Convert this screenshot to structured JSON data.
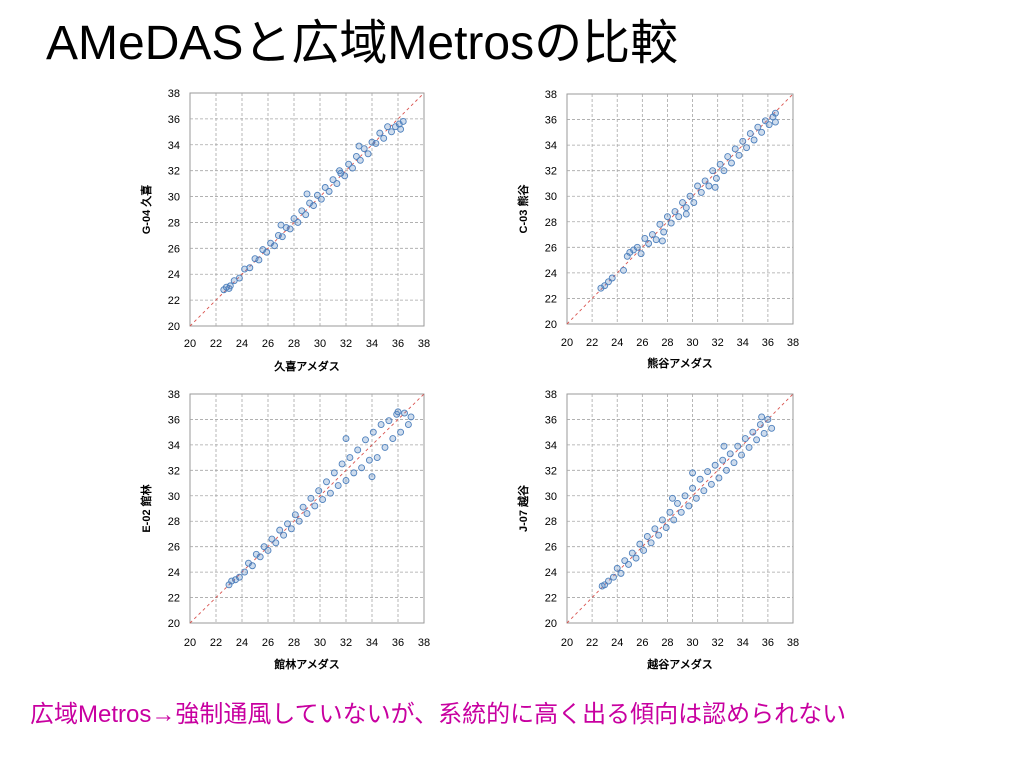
{
  "slide": {
    "title": "AMeDASと広域Metrosの比較",
    "note": "広域Metros→強制通風していないが、系統的に高く出る傾向は認められない",
    "colors": {
      "title": "#000000",
      "note": "#c800a0",
      "point": "#4f81bd",
      "point_fill": "rgba(79,129,189,0.28)",
      "diagonal": "#d9534f",
      "grid": "#a6a6a6",
      "frame": "#9a9a9a"
    }
  },
  "chart_data": [
    {
      "type": "scatter",
      "xlabel": "久喜アメダス",
      "ylabel": "G-04 久喜",
      "xlim": [
        20,
        38
      ],
      "ylim": [
        20,
        38
      ],
      "xticks": [
        "20",
        "22",
        "24",
        "26",
        "28",
        "30",
        "32",
        "34",
        "36",
        "38"
      ],
      "yticks": [
        "20",
        "22",
        "24",
        "26",
        "28",
        "30",
        "32",
        "34",
        "36",
        "38"
      ],
      "grid": true,
      "reference_line": {
        "x": [
          20,
          38
        ],
        "y": [
          20,
          38
        ]
      },
      "points": [
        [
          22.6,
          22.8
        ],
        [
          22.8,
          23.0
        ],
        [
          23.0,
          22.9
        ],
        [
          23.1,
          23.1
        ],
        [
          23.4,
          23.5
        ],
        [
          23.8,
          23.7
        ],
        [
          24.2,
          24.4
        ],
        [
          24.6,
          24.5
        ],
        [
          25.0,
          25.2
        ],
        [
          25.3,
          25.1
        ],
        [
          25.6,
          25.9
        ],
        [
          25.9,
          25.7
        ],
        [
          26.2,
          26.4
        ],
        [
          26.5,
          26.2
        ],
        [
          26.8,
          27.0
        ],
        [
          27.1,
          26.9
        ],
        [
          27.4,
          27.6
        ],
        [
          27.7,
          27.5
        ],
        [
          28.0,
          28.3
        ],
        [
          28.3,
          28.0
        ],
        [
          28.6,
          28.9
        ],
        [
          28.9,
          28.6
        ],
        [
          29.2,
          29.5
        ],
        [
          29.5,
          29.3
        ],
        [
          29.8,
          30.1
        ],
        [
          30.1,
          29.8
        ],
        [
          30.4,
          30.7
        ],
        [
          30.7,
          30.4
        ],
        [
          31.0,
          31.3
        ],
        [
          31.3,
          31.0
        ],
        [
          31.6,
          31.8
        ],
        [
          31.9,
          31.6
        ],
        [
          32.2,
          32.5
        ],
        [
          32.5,
          32.2
        ],
        [
          32.8,
          33.1
        ],
        [
          33.1,
          32.8
        ],
        [
          33.4,
          33.7
        ],
        [
          33.7,
          33.3
        ],
        [
          34.0,
          34.2
        ],
        [
          34.3,
          34.1
        ],
        [
          34.6,
          34.9
        ],
        [
          34.9,
          34.5
        ],
        [
          35.2,
          35.4
        ],
        [
          35.5,
          35.0
        ],
        [
          35.8,
          35.4
        ],
        [
          36.1,
          35.6
        ],
        [
          36.4,
          35.8
        ],
        [
          36.2,
          35.2
        ],
        [
          29.0,
          30.2
        ],
        [
          27.0,
          27.8
        ],
        [
          31.5,
          32.0
        ],
        [
          33.0,
          33.9
        ]
      ]
    },
    {
      "type": "scatter",
      "xlabel": "熊谷アメダス",
      "ylabel": "C-03 熊谷",
      "xlim": [
        20,
        38
      ],
      "ylim": [
        20,
        38
      ],
      "xticks": [
        "20",
        "22",
        "24",
        "26",
        "28",
        "30",
        "32",
        "34",
        "36",
        "38"
      ],
      "yticks": [
        "20",
        "22",
        "24",
        "26",
        "28",
        "30",
        "32",
        "34",
        "36",
        "38"
      ],
      "grid": true,
      "reference_line": {
        "x": [
          20,
          38
        ],
        "y": [
          20,
          38
        ]
      },
      "points": [
        [
          22.7,
          22.8
        ],
        [
          23.0,
          23.0
        ],
        [
          23.3,
          23.3
        ],
        [
          23.6,
          23.6
        ],
        [
          24.5,
          24.2
        ],
        [
          24.8,
          25.3
        ],
        [
          25.0,
          25.6
        ],
        [
          25.3,
          25.8
        ],
        [
          25.6,
          26.0
        ],
        [
          25.9,
          25.5
        ],
        [
          26.2,
          26.7
        ],
        [
          26.5,
          26.3
        ],
        [
          26.8,
          27.0
        ],
        [
          27.1,
          26.6
        ],
        [
          27.4,
          27.8
        ],
        [
          27.7,
          27.2
        ],
        [
          28.0,
          28.4
        ],
        [
          28.3,
          27.9
        ],
        [
          28.6,
          28.8
        ],
        [
          28.9,
          28.4
        ],
        [
          29.2,
          29.5
        ],
        [
          29.5,
          29.1
        ],
        [
          29.8,
          30.0
        ],
        [
          30.1,
          29.5
        ],
        [
          30.4,
          30.8
        ],
        [
          30.7,
          30.3
        ],
        [
          31.0,
          31.2
        ],
        [
          31.3,
          30.8
        ],
        [
          31.6,
          32.0
        ],
        [
          31.9,
          31.4
        ],
        [
          32.2,
          32.5
        ],
        [
          32.5,
          32.0
        ],
        [
          32.8,
          33.1
        ],
        [
          33.1,
          32.6
        ],
        [
          33.4,
          33.7
        ],
        [
          33.7,
          33.2
        ],
        [
          34.0,
          34.3
        ],
        [
          34.3,
          33.8
        ],
        [
          34.6,
          34.9
        ],
        [
          34.9,
          34.4
        ],
        [
          35.2,
          35.4
        ],
        [
          35.5,
          35.0
        ],
        [
          35.8,
          35.9
        ],
        [
          36.1,
          35.6
        ],
        [
          36.4,
          36.2
        ],
        [
          36.6,
          35.8
        ],
        [
          29.5,
          28.6
        ],
        [
          31.8,
          30.7
        ],
        [
          27.6,
          26.5
        ],
        [
          36.6,
          36.5
        ]
      ]
    },
    {
      "type": "scatter",
      "xlabel": "館林アメダス",
      "ylabel": "E-02 館林",
      "xlim": [
        20,
        38
      ],
      "ylim": [
        20,
        38
      ],
      "xticks": [
        "20",
        "22",
        "24",
        "26",
        "28",
        "30",
        "32",
        "34",
        "36",
        "38"
      ],
      "yticks": [
        "20",
        "22",
        "24",
        "26",
        "28",
        "30",
        "32",
        "34",
        "36",
        "38"
      ],
      "grid": true,
      "reference_line": {
        "x": [
          20,
          38
        ],
        "y": [
          20,
          38
        ]
      },
      "points": [
        [
          23.0,
          23.0
        ],
        [
          23.2,
          23.3
        ],
        [
          23.5,
          23.4
        ],
        [
          23.8,
          23.6
        ],
        [
          24.2,
          24.0
        ],
        [
          24.5,
          24.7
        ],
        [
          24.8,
          24.5
        ],
        [
          25.1,
          25.4
        ],
        [
          25.4,
          25.2
        ],
        [
          25.7,
          26.0
        ],
        [
          26.0,
          25.7
        ],
        [
          26.3,
          26.6
        ],
        [
          26.6,
          26.3
        ],
        [
          26.9,
          27.3
        ],
        [
          27.2,
          26.9
        ],
        [
          27.5,
          27.8
        ],
        [
          27.8,
          27.4
        ],
        [
          28.1,
          28.5
        ],
        [
          28.4,
          28.0
        ],
        [
          28.7,
          29.1
        ],
        [
          29.0,
          28.6
        ],
        [
          29.3,
          29.8
        ],
        [
          29.6,
          29.2
        ],
        [
          29.9,
          30.4
        ],
        [
          30.2,
          29.7
        ],
        [
          30.5,
          31.1
        ],
        [
          30.8,
          30.2
        ],
        [
          31.1,
          31.8
        ],
        [
          31.4,
          30.8
        ],
        [
          31.7,
          32.5
        ],
        [
          32.0,
          31.2
        ],
        [
          32.3,
          33.0
        ],
        [
          32.6,
          31.8
        ],
        [
          32.9,
          33.6
        ],
        [
          33.2,
          32.2
        ],
        [
          33.5,
          34.4
        ],
        [
          33.8,
          32.8
        ],
        [
          34.1,
          35.0
        ],
        [
          34.4,
          33.0
        ],
        [
          34.7,
          35.6
        ],
        [
          35.0,
          33.8
        ],
        [
          35.3,
          35.9
        ],
        [
          35.6,
          34.5
        ],
        [
          35.9,
          36.4
        ],
        [
          36.2,
          35.0
        ],
        [
          36.5,
          36.5
        ],
        [
          36.8,
          35.6
        ],
        [
          32.0,
          34.5
        ],
        [
          34.0,
          31.5
        ],
        [
          36.0,
          36.6
        ],
        [
          37.0,
          36.2
        ]
      ]
    },
    {
      "type": "scatter",
      "xlabel": "越谷アメダス",
      "ylabel": "J-07 越谷",
      "xlim": [
        20,
        38
      ],
      "ylim": [
        20,
        38
      ],
      "xticks": [
        "20",
        "22",
        "24",
        "26",
        "28",
        "30",
        "32",
        "34",
        "36",
        "38"
      ],
      "yticks": [
        "20",
        "22",
        "24",
        "26",
        "28",
        "30",
        "32",
        "34",
        "36",
        "38"
      ],
      "grid": true,
      "reference_line": {
        "x": [
          20,
          38
        ],
        "y": [
          20,
          38
        ]
      },
      "points": [
        [
          22.8,
          22.9
        ],
        [
          23.0,
          23.0
        ],
        [
          23.3,
          23.3
        ],
        [
          23.7,
          23.6
        ],
        [
          24.0,
          24.3
        ],
        [
          24.3,
          23.9
        ],
        [
          24.6,
          24.9
        ],
        [
          24.9,
          24.6
        ],
        [
          25.2,
          25.5
        ],
        [
          25.5,
          25.1
        ],
        [
          25.8,
          26.2
        ],
        [
          26.1,
          25.7
        ],
        [
          26.4,
          26.8
        ],
        [
          26.7,
          26.3
        ],
        [
          27.0,
          27.4
        ],
        [
          27.3,
          26.9
        ],
        [
          27.6,
          28.1
        ],
        [
          27.9,
          27.5
        ],
        [
          28.2,
          28.7
        ],
        [
          28.5,
          28.1
        ],
        [
          28.8,
          29.4
        ],
        [
          29.1,
          28.7
        ],
        [
          29.4,
          30.0
        ],
        [
          29.7,
          29.2
        ],
        [
          30.0,
          30.6
        ],
        [
          30.3,
          29.8
        ],
        [
          30.6,
          31.3
        ],
        [
          30.9,
          30.4
        ],
        [
          31.2,
          31.9
        ],
        [
          31.5,
          30.9
        ],
        [
          31.8,
          32.4
        ],
        [
          32.1,
          31.4
        ],
        [
          32.4,
          32.8
        ],
        [
          32.7,
          32.0
        ],
        [
          33.0,
          33.3
        ],
        [
          33.3,
          32.6
        ],
        [
          33.6,
          33.9
        ],
        [
          33.9,
          33.2
        ],
        [
          34.2,
          34.5
        ],
        [
          34.5,
          33.8
        ],
        [
          34.8,
          35.0
        ],
        [
          35.1,
          34.4
        ],
        [
          35.4,
          35.6
        ],
        [
          35.7,
          34.9
        ],
        [
          36.0,
          36.0
        ],
        [
          36.3,
          35.3
        ],
        [
          30.0,
          31.8
        ],
        [
          28.4,
          29.8
        ],
        [
          35.5,
          36.2
        ],
        [
          32.5,
          33.9
        ]
      ]
    }
  ]
}
